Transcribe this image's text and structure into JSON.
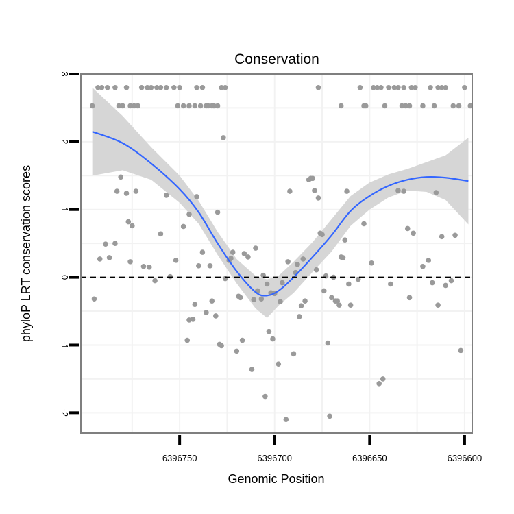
{
  "chart_data": {
    "type": "scatter",
    "title": "Conservation",
    "xlabel": "Genomic Position",
    "ylabel": "phyloP LRT conservation scores",
    "xlim": [
      6396802,
      6396596
    ],
    "ylim": [
      -2.3,
      3.0
    ],
    "x_reversed": true,
    "grid": true,
    "legend": "none",
    "x_ticks": [
      6396750,
      6396700,
      6396650,
      6396600
    ],
    "y_ticks": [
      -2,
      -1,
      0,
      1,
      2,
      3
    ],
    "reference_line": {
      "y": 0,
      "style": "dashed"
    },
    "colors": {
      "points": "#9a9a9a",
      "smooth": "#3366ff",
      "band": "#d6d6d6",
      "panel_border": "#7f7f7f",
      "grid": "#f2f2f2"
    },
    "points": [
      [
        6396796,
        2.53
      ],
      [
        6396793,
        2.8
      ],
      [
        6396791,
        2.8
      ],
      [
        6396788,
        2.8
      ],
      [
        6396784,
        2.8
      ],
      [
        6396782,
        2.53
      ],
      [
        6396780,
        2.53
      ],
      [
        6396778,
        2.8
      ],
      [
        6396776,
        2.53
      ],
      [
        6396774,
        2.53
      ],
      [
        6396772,
        2.53
      ],
      [
        6396770,
        2.8
      ],
      [
        6396767,
        2.8
      ],
      [
        6396765,
        2.8
      ],
      [
        6396762,
        2.8
      ],
      [
        6396760,
        2.8
      ],
      [
        6396757,
        2.8
      ],
      [
        6396753,
        2.8
      ],
      [
        6396750,
        2.8
      ],
      [
        6396751,
        2.53
      ],
      [
        6396748,
        2.53
      ],
      [
        6396745,
        2.53
      ],
      [
        6396742,
        2.53
      ],
      [
        6396741,
        2.8
      ],
      [
        6396739,
        2.53
      ],
      [
        6396738,
        2.8
      ],
      [
        6396736,
        2.53
      ],
      [
        6396735,
        2.53
      ],
      [
        6396733,
        2.53
      ],
      [
        6396732,
        2.53
      ],
      [
        6396730,
        2.53
      ],
      [
        6396728,
        2.8
      ],
      [
        6396726,
        2.8
      ],
      [
        6396677,
        2.8
      ],
      [
        6396665,
        2.53
      ],
      [
        6396655,
        2.8
      ],
      [
        6396653,
        2.53
      ],
      [
        6396652,
        2.53
      ],
      [
        6396648,
        2.8
      ],
      [
        6396646,
        2.8
      ],
      [
        6396644,
        2.8
      ],
      [
        6396642,
        2.53
      ],
      [
        6396640,
        2.8
      ],
      [
        6396637,
        2.8
      ],
      [
        6396635,
        2.8
      ],
      [
        6396633,
        2.53
      ],
      [
        6396631,
        2.53
      ],
      [
        6396629,
        2.53
      ],
      [
        6396632,
        2.8
      ],
      [
        6396628,
        2.8
      ],
      [
        6396626,
        2.8
      ],
      [
        6396622,
        2.53
      ],
      [
        6396618,
        2.8
      ],
      [
        6396616,
        2.53
      ],
      [
        6396614,
        2.8
      ],
      [
        6396612,
        2.8
      ],
      [
        6396610,
        2.8
      ],
      [
        6396606,
        2.53
      ],
      [
        6396603,
        2.53
      ],
      [
        6396600,
        2.8
      ],
      [
        6396597,
        2.53
      ],
      [
        6396795,
        -0.32
      ],
      [
        6396792,
        0.27
      ],
      [
        6396789,
        0.49
      ],
      [
        6396787,
        0.29
      ],
      [
        6396784,
        0.5
      ],
      [
        6396783,
        1.27
      ],
      [
        6396781,
        1.48
      ],
      [
        6396778,
        1.24
      ],
      [
        6396777,
        0.82
      ],
      [
        6396776,
        0.23
      ],
      [
        6396775,
        0.76
      ],
      [
        6396773,
        1.27
      ],
      [
        6396769,
        0.16
      ],
      [
        6396766,
        0.15
      ],
      [
        6396763,
        -0.05
      ],
      [
        6396760,
        0.64
      ],
      [
        6396757,
        1.21
      ],
      [
        6396755,
        0.01
      ],
      [
        6396752,
        0.25
      ],
      [
        6396748,
        0.75
      ],
      [
        6396746,
        -0.93
      ],
      [
        6396745,
        0.93
      ],
      [
        6396745,
        -0.63
      ],
      [
        6396743,
        -0.62
      ],
      [
        6396742,
        -0.4
      ],
      [
        6396741,
        1.19
      ],
      [
        6396740,
        0.17
      ],
      [
        6396738,
        0.37
      ],
      [
        6396736,
        -0.52
      ],
      [
        6396734,
        0.17
      ],
      [
        6396733,
        -0.35
      ],
      [
        6396731,
        -0.57
      ],
      [
        6396730,
        0.96
      ],
      [
        6396729,
        -0.99
      ],
      [
        6396728,
        -1.01
      ],
      [
        6396727,
        2.06
      ],
      [
        6396726,
        -0.02
      ],
      [
        6396724,
        0.25
      ],
      [
        6396723,
        0.28
      ],
      [
        6396722,
        0.37
      ],
      [
        6396720,
        -1.09
      ],
      [
        6396719,
        -0.28
      ],
      [
        6396718,
        -0.3
      ],
      [
        6396717,
        -0.93
      ],
      [
        6396716,
        0.35
      ],
      [
        6396714,
        0.3
      ],
      [
        6396712,
        -1.36
      ],
      [
        6396711,
        -0.33
      ],
      [
        6396710,
        0.43
      ],
      [
        6396709,
        -0.2
      ],
      [
        6396707,
        -0.32
      ],
      [
        6396706,
        0.03
      ],
      [
        6396705,
        -1.76
      ],
      [
        6396704,
        -0.1
      ],
      [
        6396703,
        -0.8
      ],
      [
        6396702,
        -0.23
      ],
      [
        6396701,
        -0.91
      ],
      [
        6396700,
        -0.24
      ],
      [
        6396698,
        -1.28
      ],
      [
        6396697,
        -0.36
      ],
      [
        6396696,
        -0.08
      ],
      [
        6396694,
        -2.1
      ],
      [
        6396693,
        0.23
      ],
      [
        6396692,
        1.27
      ],
      [
        6396690,
        -1.13
      ],
      [
        6396689,
        0.07
      ],
      [
        6396688,
        0.19
      ],
      [
        6396687,
        -0.58
      ],
      [
        6396686,
        -0.42
      ],
      [
        6396685,
        0.27
      ],
      [
        6396684,
        -0.35
      ],
      [
        6396682,
        1.44
      ],
      [
        6396681,
        1.46
      ],
      [
        6396680,
        1.46
      ],
      [
        6396679,
        1.28
      ],
      [
        6396678,
        0.11
      ],
      [
        6396677,
        1.17
      ],
      [
        6396676,
        0.65
      ],
      [
        6396675,
        0.63
      ],
      [
        6396674,
        -0.2
      ],
      [
        6396673,
        0.02
      ],
      [
        6396672,
        -0.97
      ],
      [
        6396671,
        -2.05
      ],
      [
        6396670,
        -0.3
      ],
      [
        6396669,
        0.0
      ],
      [
        6396668,
        -0.35
      ],
      [
        6396667,
        -0.35
      ],
      [
        6396666,
        -0.41
      ],
      [
        6396665,
        0.3
      ],
      [
        6396664,
        0.29
      ],
      [
        6396663,
        0.55
      ],
      [
        6396662,
        1.27
      ],
      [
        6396661,
        -0.1
      ],
      [
        6396660,
        -0.41
      ],
      [
        6396656,
        -0.03
      ],
      [
        6396653,
        0.79
      ],
      [
        6396649,
        0.21
      ],
      [
        6396645,
        -1.57
      ],
      [
        6396643,
        -1.5
      ],
      [
        6396639,
        -0.1
      ],
      [
        6396635,
        1.28
      ],
      [
        6396632,
        1.27
      ],
      [
        6396630,
        0.72
      ],
      [
        6396629,
        -0.3
      ],
      [
        6396627,
        0.65
      ],
      [
        6396622,
        0.16
      ],
      [
        6396619,
        0.25
      ],
      [
        6396617,
        -0.08
      ],
      [
        6396615,
        1.25
      ],
      [
        6396614,
        -0.41
      ],
      [
        6396612,
        0.6
      ],
      [
        6396610,
        -0.12
      ],
      [
        6396607,
        -0.05
      ],
      [
        6396605,
        0.62
      ],
      [
        6396602,
        -1.08
      ]
    ],
    "smooth_line": [
      [
        6396796,
        2.15
      ],
      [
        6396780,
        1.98
      ],
      [
        6396765,
        1.68
      ],
      [
        6396750,
        1.3
      ],
      [
        6396740,
        0.96
      ],
      [
        6396730,
        0.5
      ],
      [
        6396720,
        0.09
      ],
      [
        6396710,
        -0.22
      ],
      [
        6396704,
        -0.27
      ],
      [
        6396698,
        -0.2
      ],
      [
        6396690,
        0.0
      ],
      [
        6396680,
        0.3
      ],
      [
        6396670,
        0.62
      ],
      [
        6396660,
        0.98
      ],
      [
        6396650,
        1.2
      ],
      [
        6396640,
        1.35
      ],
      [
        6396630,
        1.44
      ],
      [
        6396620,
        1.48
      ],
      [
        6396610,
        1.47
      ],
      [
        6396598,
        1.42
      ]
    ],
    "ci_upper": [
      [
        6396796,
        2.8
      ],
      [
        6396780,
        2.38
      ],
      [
        6396765,
        1.92
      ],
      [
        6396750,
        1.5
      ],
      [
        6396740,
        1.13
      ],
      [
        6396730,
        0.67
      ],
      [
        6396720,
        0.27
      ],
      [
        6396710,
        0.02
      ],
      [
        6396704,
        -0.03
      ],
      [
        6396698,
        0.02
      ],
      [
        6396690,
        0.23
      ],
      [
        6396680,
        0.52
      ],
      [
        6396670,
        0.86
      ],
      [
        6396660,
        1.2
      ],
      [
        6396650,
        1.4
      ],
      [
        6396640,
        1.52
      ],
      [
        6396630,
        1.6
      ],
      [
        6396620,
        1.7
      ],
      [
        6396610,
        1.8
      ],
      [
        6396598,
        2.06
      ]
    ],
    "ci_lower": [
      [
        6396796,
        1.5
      ],
      [
        6396780,
        1.58
      ],
      [
        6396765,
        1.44
      ],
      [
        6396750,
        1.1
      ],
      [
        6396740,
        0.79
      ],
      [
        6396730,
        0.33
      ],
      [
        6396720,
        -0.09
      ],
      [
        6396710,
        -0.46
      ],
      [
        6396704,
        -0.6
      ],
      [
        6396698,
        -0.42
      ],
      [
        6396690,
        -0.23
      ],
      [
        6396680,
        0.08
      ],
      [
        6396670,
        0.38
      ],
      [
        6396660,
        0.76
      ],
      [
        6396650,
        1.0
      ],
      [
        6396640,
        1.18
      ],
      [
        6396630,
        1.28
      ],
      [
        6396620,
        1.26
      ],
      [
        6396610,
        1.14
      ],
      [
        6396598,
        0.78
      ]
    ]
  }
}
